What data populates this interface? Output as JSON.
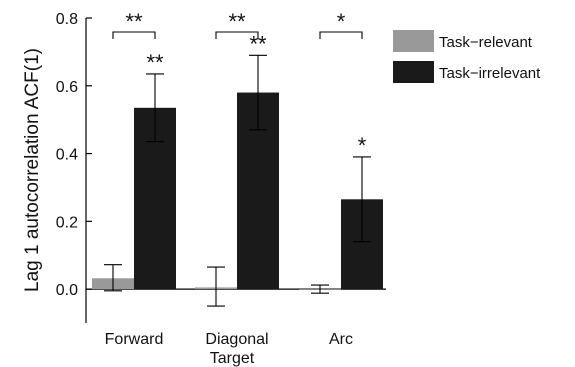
{
  "chart_data": {
    "type": "bar",
    "ylabel": "Lag 1 autocorrelation ACF(1)",
    "xlabel": "Target",
    "ylim": [
      -0.1,
      0.8
    ],
    "yticks": [
      0.0,
      0.2,
      0.4,
      0.6,
      0.8
    ],
    "ytick_labels": [
      "0.0",
      "0.2",
      "0.4",
      "0.6",
      "0.8"
    ],
    "categories": [
      "Forward",
      "Diagonal",
      "Arc"
    ],
    "series": [
      {
        "name": "Task−relevant",
        "color": "#999999",
        "values": [
          0.032,
          0.005,
          -0.001
        ],
        "err_low": [
          -0.005,
          -0.05,
          -0.012
        ],
        "err_high": [
          0.072,
          0.065,
          0.012
        ]
      },
      {
        "name": "Task−irrelevant",
        "color": "#1a1a1a",
        "values": [
          0.535,
          0.58,
          0.265
        ],
        "err_low": [
          0.435,
          0.47,
          0.14
        ],
        "err_high": [
          0.635,
          0.69,
          0.39
        ]
      }
    ],
    "significance": {
      "brackets": [
        "**",
        "**",
        "*"
      ],
      "bar_marks": [
        "**",
        "**",
        "*"
      ]
    },
    "legend_position": "top-right"
  }
}
